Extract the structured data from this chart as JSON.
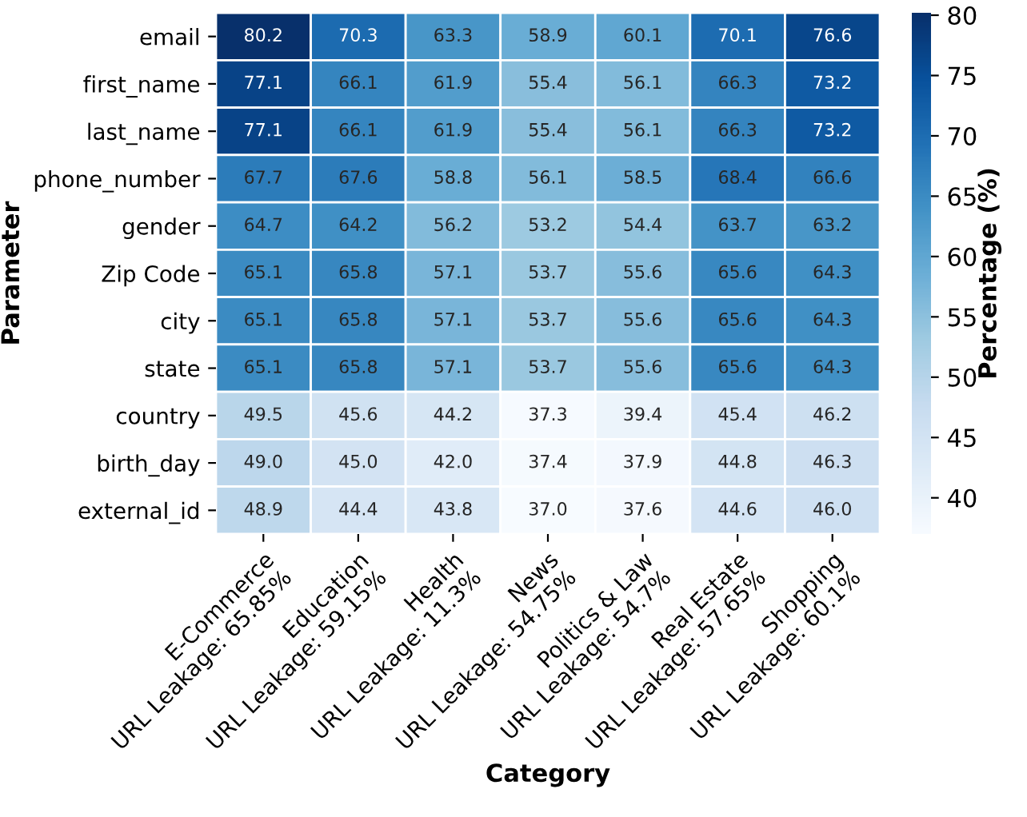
{
  "chart_data": {
    "type": "heatmap",
    "xlabel": "Category",
    "ylabel": "Parameter",
    "clabel": "Percentage (%)",
    "categories": [
      "E-Commerce\nURL Leakage: 65.85%",
      "Education\nURL Leakage: 59.15%",
      "Health\nURL Leakage: 11.3%",
      "News\nURL Leakage: 54.75%",
      "Politics & Law\nURL Leakage: 54.7%",
      "Real Estate\nURL Leakage: 57.65%",
      "Shopping\nURL Leakage: 60.1%"
    ],
    "y_categories": [
      "email",
      "first_name",
      "last_name",
      "phone_number",
      "gender",
      "Zip Code",
      "city",
      "state",
      "country",
      "birth_day",
      "external_id"
    ],
    "cells": [
      [
        80.2,
        70.3,
        63.3,
        58.9,
        60.1,
        70.1,
        76.6
      ],
      [
        77.1,
        66.1,
        61.9,
        55.4,
        56.1,
        66.3,
        73.2
      ],
      [
        77.1,
        66.1,
        61.9,
        55.4,
        56.1,
        66.3,
        73.2
      ],
      [
        67.7,
        67.6,
        58.8,
        56.1,
        58.5,
        68.4,
        66.6
      ],
      [
        64.7,
        64.2,
        56.2,
        53.2,
        54.4,
        63.7,
        63.2
      ],
      [
        65.1,
        65.8,
        57.1,
        53.7,
        55.6,
        65.6,
        64.3
      ],
      [
        65.1,
        65.8,
        57.1,
        53.7,
        55.6,
        65.6,
        64.3
      ],
      [
        65.1,
        65.8,
        57.1,
        53.7,
        55.6,
        65.6,
        64.3
      ],
      [
        49.5,
        45.6,
        44.2,
        37.3,
        39.4,
        45.4,
        46.2
      ],
      [
        49.0,
        45.0,
        42.0,
        37.4,
        37.9,
        44.8,
        46.3
      ],
      [
        48.9,
        44.4,
        43.8,
        37.0,
        37.6,
        44.6,
        46.0
      ]
    ],
    "cell_labels": [
      [
        "80.2",
        "70.3",
        "63.3",
        "58.9",
        "60.1",
        "70.1",
        "76.6"
      ],
      [
        "77.1",
        "66.1",
        "61.9",
        "55.4",
        "56.1",
        "66.3",
        "73.2"
      ],
      [
        "77.1",
        "66.1",
        "61.9",
        "55.4",
        "56.1",
        "66.3",
        "73.2"
      ],
      [
        "67.7",
        "67.6",
        "58.8",
        "56.1",
        "58.5",
        "68.4",
        "66.6"
      ],
      [
        "64.7",
        "64.2",
        "56.2",
        "53.2",
        "54.4",
        "63.7",
        "63.2"
      ],
      [
        "65.1",
        "65.8",
        "57.1",
        "53.7",
        "55.6",
        "65.6",
        "64.3"
      ],
      [
        "65.1",
        "65.8",
        "57.1",
        "53.7",
        "55.6",
        "65.6",
        "64.3"
      ],
      [
        "65.1",
        "65.8",
        "57.1",
        "53.7",
        "55.6",
        "65.6",
        "64.3"
      ],
      [
        "49.5",
        "45.6",
        "44.2",
        "37.3",
        "39.4",
        "45.4",
        "46.2"
      ],
      [
        "49.0",
        "45.0",
        "42.0",
        "37.4",
        "37.9",
        "44.8",
        "46.3"
      ],
      [
        "48.9",
        "44.4",
        "43.8",
        "37.0",
        "37.6",
        "44.6",
        "46.0"
      ]
    ],
    "clim": [
      37.0,
      80.2
    ],
    "cticks": [
      40,
      45,
      50,
      55,
      60,
      65,
      70,
      75,
      80
    ]
  }
}
